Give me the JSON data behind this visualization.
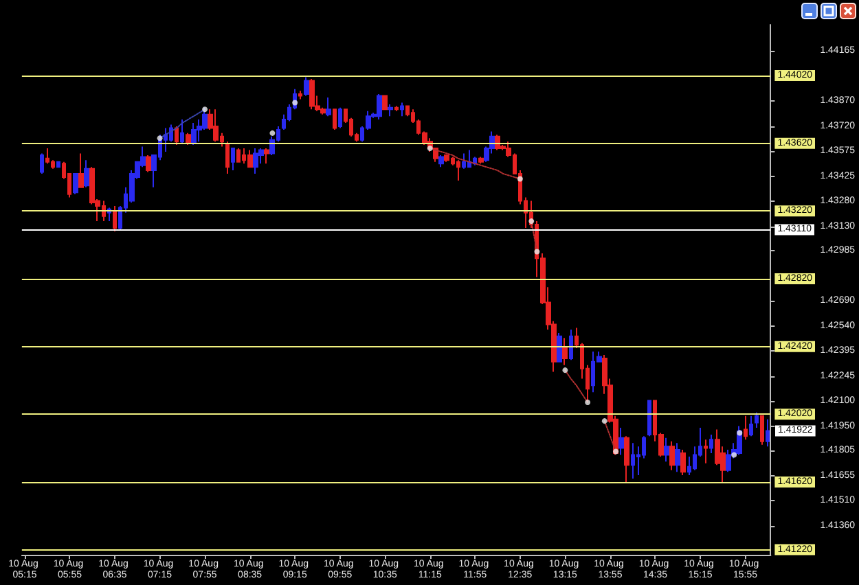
{
  "chart_data": {
    "type": "candlestick",
    "categories": [
      "10 Aug 05:15",
      null,
      null,
      null,
      null,
      null,
      null,
      null,
      "10 Aug 05:55",
      null,
      null,
      null,
      null,
      null,
      null,
      null,
      "10 Aug 06:35",
      null,
      null,
      null,
      null,
      null,
      null,
      null,
      "10 Aug 07:15",
      null,
      null,
      null,
      null,
      null,
      null,
      null,
      "10 Aug 07:55",
      null,
      null,
      null,
      null,
      null,
      null,
      null,
      "10 Aug 08:35",
      null,
      null,
      null,
      null,
      null,
      null,
      null,
      "10 Aug 09:15",
      null,
      null,
      null,
      null,
      null,
      null,
      null,
      "10 Aug 09:55",
      null,
      null,
      null,
      null,
      null,
      null,
      null,
      "10 Aug 10:35",
      null,
      null,
      null,
      null,
      null,
      null,
      null,
      "10 Aug 11:15",
      null,
      null,
      null,
      null,
      null,
      null,
      null,
      "10 Aug 11:55",
      null,
      null,
      null,
      null,
      null,
      null,
      null,
      "10 Aug 12:35",
      null,
      null,
      null,
      null,
      null,
      null,
      null,
      "10 Aug 13:15",
      null,
      null,
      null,
      null,
      null,
      null,
      null,
      "10 Aug 13:55",
      null,
      null,
      null,
      null,
      null,
      null,
      null,
      "10 Aug 14:35",
      null,
      null,
      null,
      null,
      null,
      null,
      null,
      "10 Aug 15:15",
      null,
      null,
      null,
      null,
      null,
      null,
      null,
      "10 Aug 15:55",
      null,
      null,
      null,
      null
    ],
    "ohlc": [
      null,
      null,
      null,
      [
        1.4345,
        1.4356,
        1.4344,
        1.4355
      ],
      [
        1.4353,
        1.4359,
        1.435,
        1.4351
      ],
      [
        1.4351,
        1.4352,
        1.4347,
        1.4348
      ],
      [
        1.4348,
        1.4351,
        1.4348,
        1.4351
      ],
      [
        1.435,
        1.4351,
        1.4341,
        1.4342
      ],
      [
        1.4344,
        1.4344,
        1.433,
        1.4332
      ],
      [
        1.4333,
        1.4344,
        1.4332,
        1.4344
      ],
      [
        1.4344,
        1.4356,
        1.4336,
        1.4336
      ],
      [
        1.4337,
        1.4352,
        1.4336,
        1.4347
      ],
      [
        1.4347,
        1.4348,
        1.4326,
        1.4327
      ],
      [
        1.4328,
        1.4329,
        1.4316,
        1.4325
      ],
      [
        1.4325,
        1.4328,
        1.4316,
        1.4319
      ],
      [
        1.4321,
        1.4324,
        1.4316,
        1.4323
      ],
      [
        1.4322,
        1.4325,
        1.431,
        1.4312
      ],
      [
        1.4312,
        1.4325,
        1.4311,
        1.4324
      ],
      [
        1.4324,
        1.4336,
        1.4321,
        1.4332
      ],
      [
        1.4328,
        1.4346,
        1.4327,
        1.4344
      ],
      [
        1.4342,
        1.4351,
        1.4341,
        1.4351
      ],
      [
        1.4349,
        1.436,
        1.4348,
        1.4354
      ],
      [
        1.4354,
        1.4355,
        1.4345,
        1.4346
      ],
      [
        1.4346,
        1.4355,
        1.4336,
        1.4355
      ],
      [
        1.4354,
        1.4367,
        1.4352,
        1.4364
      ],
      [
        1.4364,
        1.4371,
        1.4357,
        1.4367
      ],
      [
        1.4364,
        1.4373,
        1.4363,
        1.4371
      ],
      [
        1.4371,
        1.4372,
        1.4361,
        1.4363
      ],
      [
        1.4363,
        1.4376,
        1.4362,
        1.4368
      ],
      [
        1.4367,
        1.4368,
        1.4361,
        1.4362
      ],
      [
        1.4362,
        1.4374,
        1.4361,
        1.437
      ],
      [
        1.437,
        1.4376,
        1.4363,
        1.4372
      ],
      [
        1.4371,
        1.4383,
        1.437,
        1.4379
      ],
      [
        1.4379,
        1.4382,
        1.437,
        1.4371
      ],
      [
        1.4372,
        1.4382,
        1.4363,
        1.4364
      ],
      [
        1.4366,
        1.4368,
        1.436,
        1.4363
      ],
      [
        1.4361,
        1.4363,
        1.4344,
        1.4348
      ],
      [
        1.4351,
        1.4359,
        1.4346,
        1.4359
      ],
      [
        1.4358,
        1.4359,
        1.4351,
        1.4351
      ],
      [
        1.4355,
        1.4359,
        1.435,
        1.4352
      ],
      [
        1.4355,
        1.4358,
        1.4348,
        1.4348
      ],
      [
        1.4348,
        1.4359,
        1.4344,
        1.4356
      ],
      [
        1.4355,
        1.4359,
        1.435,
        1.4358
      ],
      [
        1.4358,
        1.4359,
        1.435,
        1.4356
      ],
      [
        1.4356,
        1.4366,
        1.4355,
        1.4364
      ],
      [
        1.4364,
        1.4372,
        1.4363,
        1.437
      ],
      [
        1.4371,
        1.4379,
        1.437,
        1.4376
      ],
      [
        1.4376,
        1.4385,
        1.4375,
        1.4383
      ],
      [
        1.4383,
        1.4394,
        1.4382,
        1.4391
      ],
      [
        1.4391,
        1.4393,
        1.4388,
        1.439
      ],
      [
        1.4391,
        1.4401,
        1.439,
        1.4399
      ],
      [
        1.4399,
        1.44,
        1.4382,
        1.4384
      ],
      [
        1.4384,
        1.439,
        1.4381,
        1.4382
      ],
      [
        1.4382,
        1.4383,
        1.4379,
        1.438
      ],
      [
        1.4379,
        1.4389,
        1.4378,
        1.4382
      ],
      [
        1.4382,
        1.4382,
        1.437,
        1.4371
      ],
      [
        1.4372,
        1.4383,
        1.4371,
        1.4382
      ],
      [
        1.4382,
        1.4382,
        1.4374,
        1.4375
      ],
      [
        1.4376,
        1.4377,
        1.4366,
        1.4367
      ],
      [
        1.4367,
        1.4368,
        1.4363,
        1.4364
      ],
      [
        1.4364,
        1.4372,
        1.4363,
        1.4371
      ],
      [
        1.4371,
        1.4381,
        1.437,
        1.4378
      ],
      [
        1.4378,
        1.438,
        1.4377,
        1.4379
      ],
      [
        1.4378,
        1.4391,
        1.4376,
        1.439
      ],
      [
        1.439,
        1.439,
        1.4382,
        1.4382
      ],
      [
        1.4382,
        1.4385,
        1.4378,
        1.4383
      ],
      [
        1.4383,
        1.4384,
        1.4381,
        1.4382
      ],
      [
        1.4382,
        1.4386,
        1.4378,
        1.4384
      ],
      [
        1.4384,
        1.4384,
        1.4378,
        1.4379
      ],
      [
        1.438,
        1.4382,
        1.4374,
        1.4375
      ],
      [
        1.4375,
        1.4376,
        1.4367,
        1.4368
      ],
      [
        1.4368,
        1.4369,
        1.4361,
        1.4362
      ],
      [
        1.4363,
        1.4365,
        1.4357,
        1.4359
      ],
      [
        1.4359,
        1.4359,
        1.4351,
        1.4353
      ],
      [
        1.435,
        1.4355,
        1.4348,
        1.4354
      ],
      [
        1.4355,
        1.4355,
        1.4351,
        1.4352
      ],
      [
        1.4353,
        1.4354,
        1.4349,
        1.435
      ],
      [
        1.4351,
        1.4352,
        1.434,
        1.4348
      ],
      [
        1.4348,
        1.4356,
        1.4347,
        1.4351
      ],
      [
        1.4348,
        1.4358,
        1.4348,
        1.4351
      ],
      [
        1.435,
        1.4354,
        1.4349,
        1.4353
      ],
      [
        1.4353,
        1.4354,
        1.435,
        1.4351
      ],
      [
        1.4352,
        1.436,
        1.4351,
        1.4359
      ],
      [
        1.4359,
        1.4369,
        1.4356,
        1.4366
      ],
      [
        1.4366,
        1.4367,
        1.4358,
        1.4359
      ],
      [
        1.436,
        1.4361,
        1.4358,
        1.4359
      ],
      [
        1.4359,
        1.4363,
        1.4354,
        1.4355
      ],
      [
        1.4355,
        1.4356,
        1.4344,
        1.4344
      ],
      [
        1.4344,
        1.4346,
        1.4326,
        1.4328
      ],
      [
        1.4328,
        1.433,
        1.4312,
        1.4321
      ],
      [
        1.4321,
        1.4328,
        1.4312,
        1.4314
      ],
      [
        1.4314,
        1.4316,
        1.4283,
        1.4294
      ],
      [
        1.4294,
        1.4297,
        1.4267,
        1.4268
      ],
      [
        1.4268,
        1.4277,
        1.4252,
        1.4255
      ],
      [
        1.4255,
        1.4257,
        1.4227,
        1.4233
      ],
      [
        1.4233,
        1.425,
        1.4233,
        1.4248
      ],
      [
        1.4241,
        1.4247,
        1.4231,
        1.4235
      ],
      [
        1.4235,
        1.4252,
        1.4234,
        1.4248
      ],
      [
        1.4248,
        1.4253,
        1.4241,
        1.4243
      ],
      [
        1.4243,
        1.4244,
        1.4223,
        1.4229
      ],
      [
        1.4229,
        1.4231,
        1.4209,
        1.4217
      ],
      [
        1.4219,
        1.4239,
        1.4215,
        1.4233
      ],
      [
        1.4233,
        1.4239,
        1.4233,
        1.4236
      ],
      [
        1.4235,
        1.4237,
        1.4214,
        1.4219
      ],
      [
        1.4219,
        1.4223,
        1.4197,
        1.4198
      ],
      [
        1.4199,
        1.4201,
        1.4178,
        1.4179
      ],
      [
        1.4182,
        1.4194,
        1.4178,
        1.4188
      ],
      [
        1.4188,
        1.4189,
        1.4162,
        1.4172
      ],
      [
        1.4172,
        1.4185,
        1.4164,
        1.4178
      ],
      [
        1.4177,
        1.4183,
        1.4166,
        1.4178
      ],
      [
        1.4178,
        1.4189,
        1.4176,
        1.4188
      ],
      [
        1.419,
        1.421,
        1.4189,
        1.421
      ],
      [
        1.421,
        1.421,
        1.4186,
        1.419
      ],
      [
        1.419,
        1.4191,
        1.4177,
        1.4178
      ],
      [
        1.4178,
        1.4188,
        1.4174,
        1.4183
      ],
      [
        1.4183,
        1.4186,
        1.4169,
        1.4172
      ],
      [
        1.4172,
        1.4185,
        1.4168,
        1.4181
      ],
      [
        1.4179,
        1.4181,
        1.4166,
        1.4168
      ],
      [
        1.4168,
        1.4177,
        1.4166,
        1.4171
      ],
      [
        1.417,
        1.4183,
        1.4169,
        1.4178
      ],
      [
        1.4178,
        1.4194,
        1.4177,
        1.4183
      ],
      [
        1.4183,
        1.4187,
        1.4173,
        1.4182
      ],
      [
        1.4182,
        1.419,
        1.4179,
        1.4187
      ],
      [
        1.4187,
        1.4193,
        1.4172,
        1.4173
      ],
      [
        1.4179,
        1.4183,
        1.4162,
        1.4169
      ],
      [
        1.4169,
        1.4181,
        1.4168,
        1.4178
      ],
      [
        1.4178,
        1.4185,
        1.4176,
        1.4181
      ],
      [
        1.4179,
        1.4195,
        1.4178,
        1.4192
      ],
      [
        1.4193,
        1.4201,
        1.4187,
        1.4189
      ],
      [
        1.419,
        1.4201,
        1.4189,
        1.4196
      ],
      [
        1.4197,
        1.4203,
        1.4194,
        1.4201
      ],
      [
        1.4201,
        1.4201,
        1.4184,
        1.4186
      ],
      [
        1.4186,
        1.4199,
        1.4183,
        1.41922
      ]
    ],
    "colors": [
      null,
      null,
      null,
      "#2a2af0",
      "#e82222",
      "#e82222",
      "#2a2af0",
      "#e82222",
      "#e82222",
      "#2a2af0",
      "#e82222",
      "#2a2af0",
      "#e82222",
      "#e82222",
      "#e82222",
      "#2a2af0",
      "#e82222",
      "#2a2af0",
      "#2a2af0",
      "#2a2af0",
      "#2a2af0",
      "#2a2af0",
      "#e82222",
      "#2a2af0",
      "#2a2af0",
      "#2a2af0",
      "#2a2af0",
      "#e82222",
      "#2a2af0",
      "#e82222",
      "#2a2af0",
      "#2a2af0",
      "#2a2af0",
      "#e82222",
      "#e82222",
      "#e82222",
      "#e82222",
      "#2a2af0",
      "#e82222",
      "#e82222",
      "#e82222",
      "#2a2af0",
      "#2a2af0",
      "#e82222",
      "#2a2af0",
      "#2a2af0",
      "#2a2af0",
      "#2a2af0",
      "#2a2af0",
      "#e82222",
      "#2a2af0",
      "#e82222",
      "#e82222",
      "#e82222",
      "#2a2af0",
      "#e82222",
      "#2a2af0",
      "#e82222",
      "#e82222",
      "#e82222",
      "#2a2af0",
      "#2a2af0",
      "#2a2af0",
      "#2a2af0",
      "#e82222",
      "#2a2af0",
      "#e82222",
      "#2a2af0",
      "#e82222",
      "#e82222",
      "#e82222",
      "#e82222",
      "#e82222",
      "#e82222",
      "#2a2af0",
      "#e82222",
      "#e82222",
      "#e82222",
      "#2a2af0",
      "#2a2af0",
      "#2a2af0",
      "#e82222",
      "#2a2af0",
      "#2a2af0",
      "#e82222",
      "#e82222",
      "#e82222",
      "#e82222",
      "#e82222",
      "#e82222",
      "#e82222",
      "#e82222",
      "#e82222",
      "#e82222",
      "#e82222",
      "#2a2af0",
      "#e82222",
      "#2a2af0",
      "#e82222",
      "#e82222",
      "#e82222",
      "#2a2af0",
      "#2a2af0",
      "#e82222",
      "#e82222",
      "#e82222",
      "#2a2af0",
      "#e82222",
      "#2a2af0",
      "#2a2af0",
      "#2a2af0",
      "#2a2af0",
      "#e82222",
      "#e82222",
      "#2a2af0",
      "#e82222",
      "#2a2af0",
      "#e82222",
      "#2a2af0",
      "#2a2af0",
      "#2a2af0",
      "#e82222",
      "#2a2af0",
      "#e82222",
      "#e82222",
      "#2a2af0",
      "#2a2af0",
      "#2a2af0",
      "#e82222",
      "#2a2af0",
      "#2a2af0",
      "#e82222",
      "#2a2af0"
    ],
    "series": [
      {
        "type": "line",
        "color": "#3a46b0",
        "line_style": "dotted",
        "marker": "none",
        "values": [
          null,
          null,
          null,
          null,
          null,
          null,
          null,
          null,
          null,
          null,
          null,
          null,
          null,
          null,
          null,
          null,
          null,
          null,
          null,
          null,
          null,
          null,
          null,
          null,
          1.4365,
          1.4367,
          1.4369,
          1.4371,
          1.4374,
          1.4376,
          1.4378,
          1.438,
          1.4382,
          null,
          null,
          null,
          null,
          null,
          null,
          null,
          null,
          null,
          null,
          null,
          null,
          null,
          null,
          null,
          null,
          null,
          null,
          null,
          null,
          null,
          null,
          null,
          null,
          null,
          null,
          null,
          null,
          null,
          null,
          null,
          null,
          null,
          null,
          null,
          null,
          null,
          null,
          null,
          null,
          null,
          null,
          null,
          null,
          null,
          null,
          null,
          null,
          null,
          null,
          null,
          null,
          null,
          null,
          null,
          null,
          null,
          null,
          null,
          null,
          null,
          null,
          null,
          null,
          null,
          null,
          null,
          null,
          null,
          null,
          null,
          null,
          null,
          null,
          null,
          null,
          null,
          null,
          null,
          null,
          null,
          null,
          null,
          null,
          null,
          null,
          null,
          null,
          null,
          null,
          null,
          null,
          null,
          null,
          null,
          null,
          null,
          null,
          null,
          null
        ]
      },
      {
        "type": "line",
        "color": "#b03030",
        "line_style": "dotted",
        "marker": "none",
        "values": [
          null,
          null,
          null,
          null,
          null,
          null,
          null,
          null,
          null,
          null,
          null,
          null,
          null,
          null,
          null,
          null,
          null,
          null,
          null,
          null,
          null,
          null,
          null,
          null,
          null,
          null,
          null,
          null,
          null,
          null,
          null,
          null,
          null,
          null,
          null,
          null,
          null,
          null,
          null,
          null,
          null,
          null,
          null,
          null,
          null,
          null,
          null,
          null,
          null,
          null,
          null,
          null,
          null,
          null,
          null,
          null,
          null,
          null,
          null,
          null,
          null,
          null,
          null,
          null,
          null,
          null,
          null,
          null,
          null,
          null,
          null,
          null,
          1.4359,
          1.4358,
          1.4357,
          1.4356,
          1.4355,
          1.4353,
          1.4352,
          1.4351,
          1.435,
          1.4349,
          1.4348,
          1.4347,
          1.4346,
          1.4344,
          1.4343,
          1.4342,
          1.4341,
          null,
          1.4316,
          1.4298,
          null,
          null,
          null,
          null,
          1.4228,
          1.4223,
          1.4219,
          1.4214,
          1.4209,
          null,
          null,
          1.4198,
          1.4189,
          1.418,
          null,
          null,
          null,
          null,
          null,
          null,
          null,
          null,
          null,
          null,
          null,
          null,
          null,
          null,
          null,
          null,
          null,
          null,
          null,
          null,
          null,
          null,
          null,
          null,
          null,
          null,
          null
        ]
      },
      {
        "type": "scatter",
        "color": "#f0f0f0",
        "marker": "circle",
        "values": [
          null,
          null,
          null,
          null,
          null,
          null,
          null,
          null,
          null,
          null,
          null,
          null,
          null,
          null,
          null,
          null,
          null,
          null,
          null,
          null,
          null,
          null,
          null,
          null,
          1.4365,
          null,
          null,
          null,
          null,
          null,
          null,
          null,
          1.4382,
          null,
          null,
          null,
          null,
          null,
          null,
          null,
          null,
          null,
          null,
          null,
          1.4368,
          null,
          null,
          null,
          1.4386,
          null,
          null,
          null,
          null,
          null,
          null,
          null,
          null,
          null,
          null,
          null,
          null,
          null,
          null,
          null,
          null,
          null,
          null,
          null,
          null,
          null,
          null,
          null,
          1.4359,
          null,
          null,
          null,
          null,
          null,
          null,
          null,
          null,
          null,
          null,
          null,
          null,
          null,
          null,
          null,
          1.4341,
          null,
          1.4316,
          1.4298,
          null,
          null,
          null,
          null,
          1.4228,
          null,
          null,
          null,
          1.4209,
          null,
          null,
          1.4198,
          null,
          1.418,
          null,
          null,
          null,
          null,
          null,
          null,
          null,
          null,
          null,
          null,
          null,
          null,
          null,
          null,
          null,
          null,
          null,
          null,
          null,
          null,
          1.4178,
          1.4191,
          null,
          null,
          null,
          null,
          null
        ]
      }
    ],
    "ylim": [
      1.4119,
      1.4432
    ],
    "yticks": [
      1.44165,
      {
        "value": 1.4387,
        "label": "1.43870"
      },
      {
        "value": 1.4372,
        "label": "1.43720"
      },
      1.43575,
      1.43425,
      {
        "value": 1.4328,
        "label": "1.43280"
      },
      {
        "value": 1.4313,
        "label": "1.43130"
      },
      1.42985,
      {
        "value": 1.4269,
        "label": "1.42690"
      },
      {
        "value": 1.4254,
        "label": "1.42540"
      },
      1.42395,
      1.42245,
      {
        "value": 1.421,
        "label": "1.42100"
      },
      {
        "value": 1.4195,
        "label": "1.41950"
      },
      1.41805,
      1.41655,
      {
        "value": 1.4151,
        "label": "1.41510"
      },
      {
        "value": 1.4136,
        "label": "1.41360"
      }
    ],
    "ref_lines": [
      {
        "axis": "y",
        "value": 1.4402,
        "label": "1.44020",
        "color": "#f0f080"
      },
      {
        "axis": "y",
        "value": 1.4362,
        "label": "1.43620",
        "color": "#f0f080"
      },
      {
        "axis": "y",
        "value": 1.4322,
        "label": "1.43220",
        "color": "#f0f080"
      },
      {
        "axis": "y",
        "value": 1.4311,
        "label": "1.43110",
        "color": "#ffffff"
      },
      {
        "axis": "y",
        "value": 1.4282,
        "label": "1.42820",
        "color": "#f0f080"
      },
      {
        "axis": "y",
        "value": 1.4242,
        "label": "1.42420",
        "color": "#f0f080"
      },
      {
        "axis": "y",
        "value": 1.4202,
        "label": "1.42020",
        "color": "#f0f080"
      },
      {
        "axis": "y",
        "value": 1.4162,
        "label": "1.41620",
        "color": "#f0f080"
      },
      {
        "axis": "y",
        "value": 1.4122,
        "label": "1.41220",
        "color": "#f0f080"
      }
    ],
    "annotations": [
      "1.41922"
    ]
  }
}
